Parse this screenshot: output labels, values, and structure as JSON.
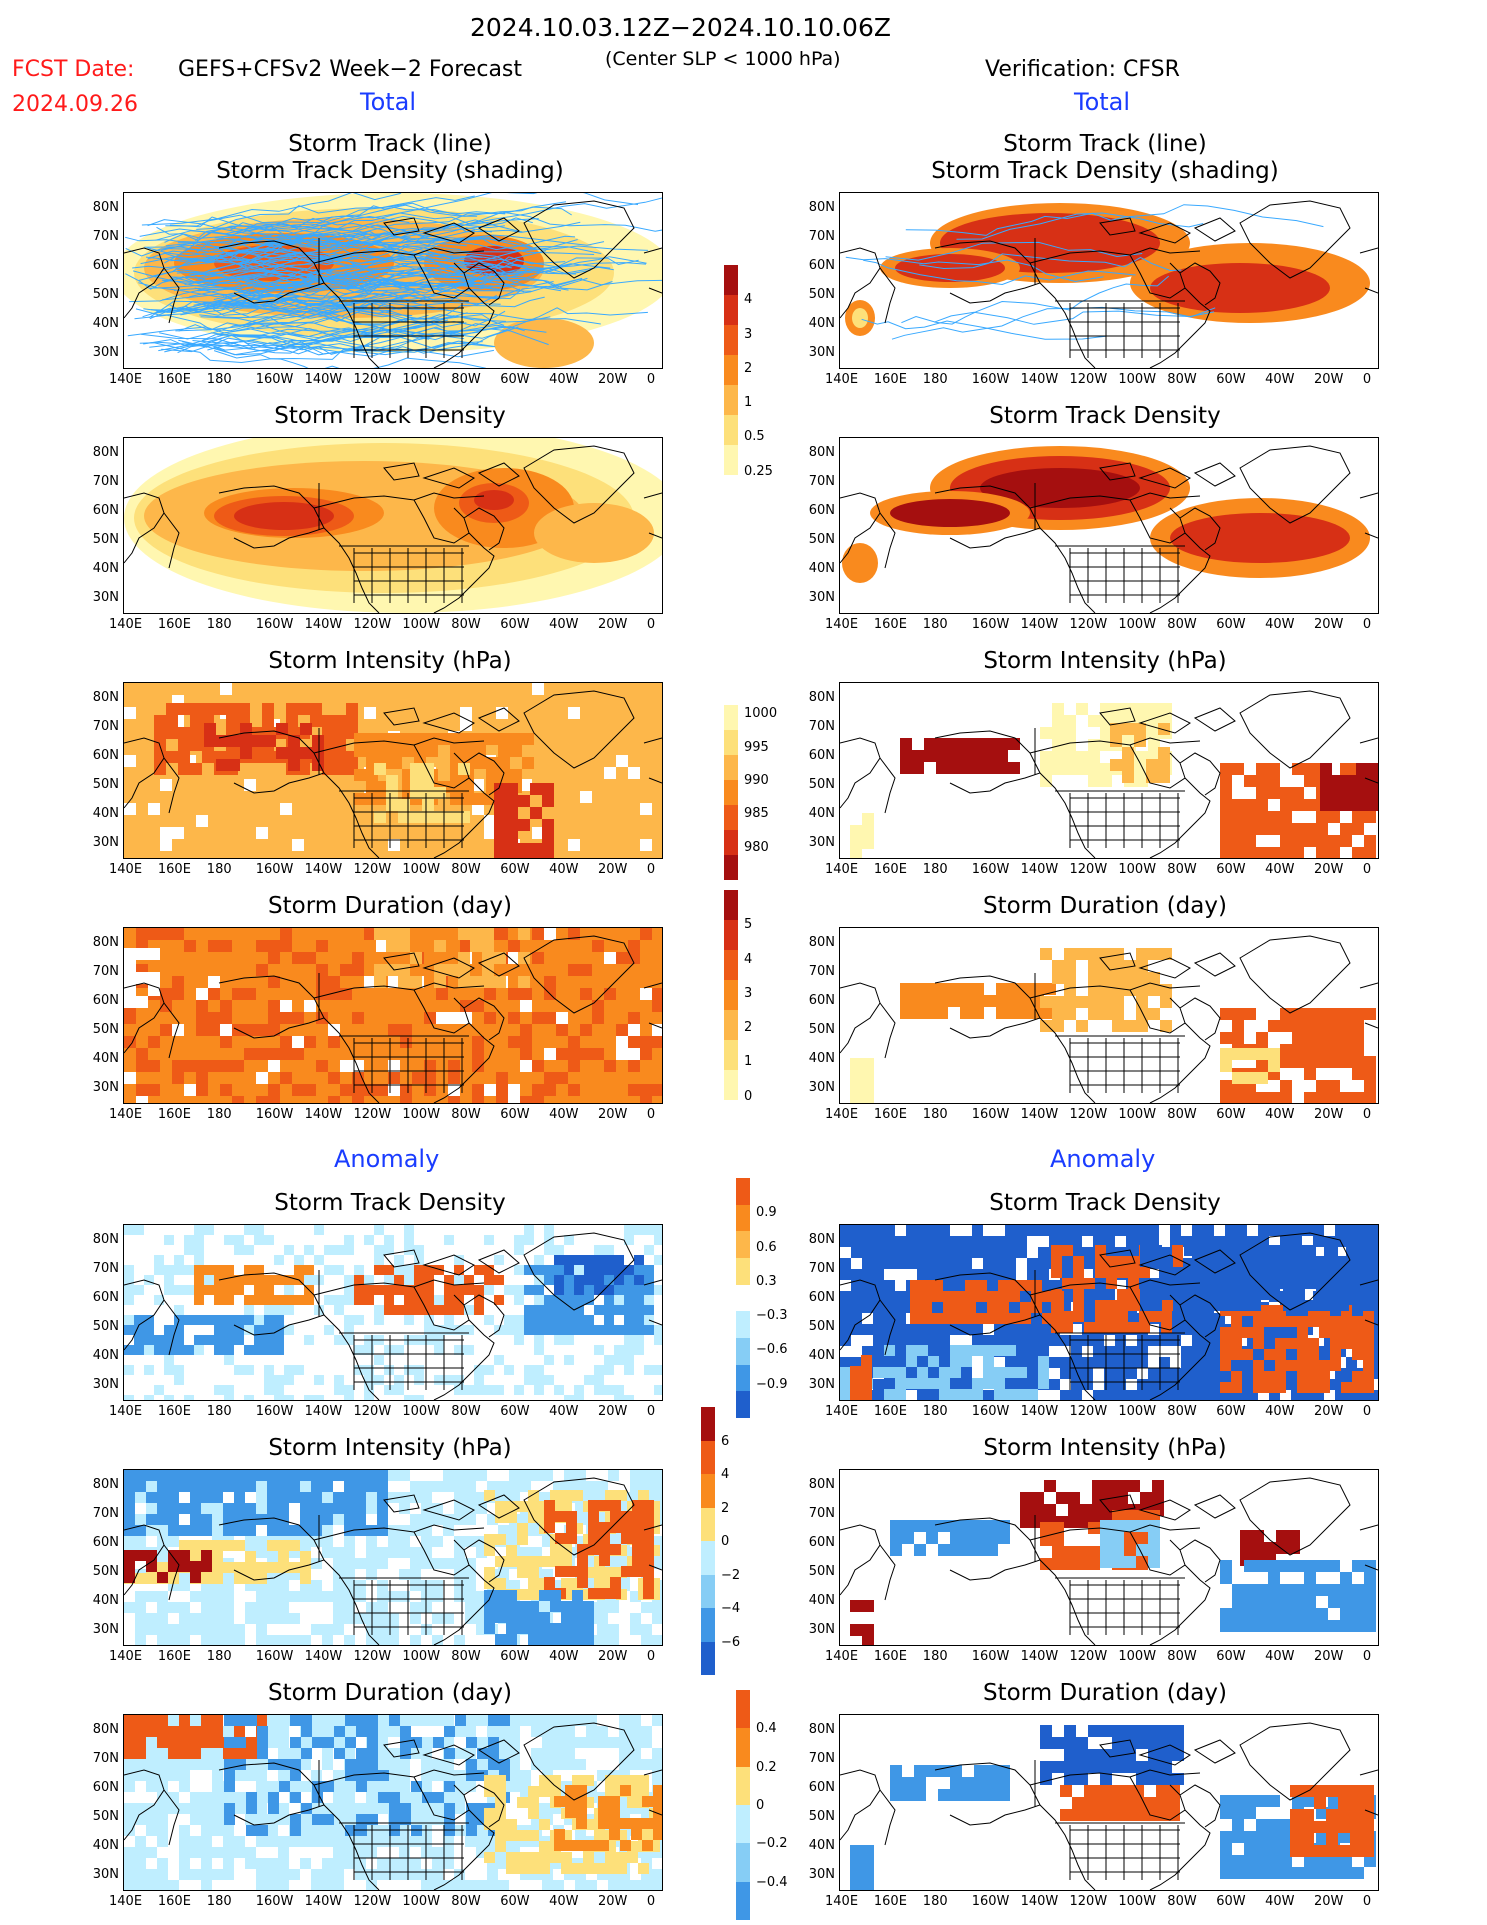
{
  "header": {
    "period": "2024.10.03.12Z−2024.10.10.06Z",
    "fcst_date_label": "FCST Date:",
    "fcst_date": "2024.09.26",
    "forecast_name": "GEFS+CFSv2 Week−2 Forecast",
    "criterion": "(Center SLP < 1000 hPa)",
    "verification": "Verification: CFSR"
  },
  "sections": {
    "total_left": "Total",
    "total_right": "Total",
    "anomaly_left": "Anomaly",
    "anomaly_right": "Anomaly"
  },
  "panel_titles": {
    "track_line": "Storm Track (line)",
    "track_shading": "Storm Track Density (shading)",
    "density": "Storm Track Density",
    "intensity": "Storm Intensity (hPa)",
    "duration": "Storm Duration (day)"
  },
  "axes": {
    "lat_labels": [
      "80N",
      "70N",
      "60N",
      "50N",
      "40N",
      "30N"
    ],
    "lon_labels": [
      "140E",
      "160E",
      "180",
      "160W",
      "140W",
      "120W",
      "100W",
      "80W",
      "60W",
      "40W",
      "20W",
      "0"
    ]
  },
  "colorbars": {
    "total_density": [
      "4",
      "3",
      "2",
      "1",
      "0.5",
      "0.25"
    ],
    "total_intensity": [
      "1000",
      "995",
      "990",
      "985",
      "980"
    ],
    "total_duration": [
      "5",
      "4",
      "3",
      "2",
      "1",
      "0"
    ],
    "anom_density": [
      "0.9",
      "0.6",
      "0.3",
      "−0.3",
      "−0.6",
      "−0.9"
    ],
    "anom_intensity": [
      "6",
      "4",
      "2",
      "0",
      "−2",
      "−4",
      "−6"
    ],
    "anom_duration": [
      "0.4",
      "0.2",
      "0",
      "−0.2",
      "−0.4"
    ]
  },
  "colors": {
    "warm": [
      "#fff7b0",
      "#fde07a",
      "#fdb74a",
      "#f98a1e",
      "#ee5a17",
      "#d73015",
      "#a50f0f"
    ],
    "cool": [
      "#bfeeff",
      "#86cdf5",
      "#3f97e6",
      "#1f5fcc"
    ],
    "track_line": "#39a9ff"
  }
}
